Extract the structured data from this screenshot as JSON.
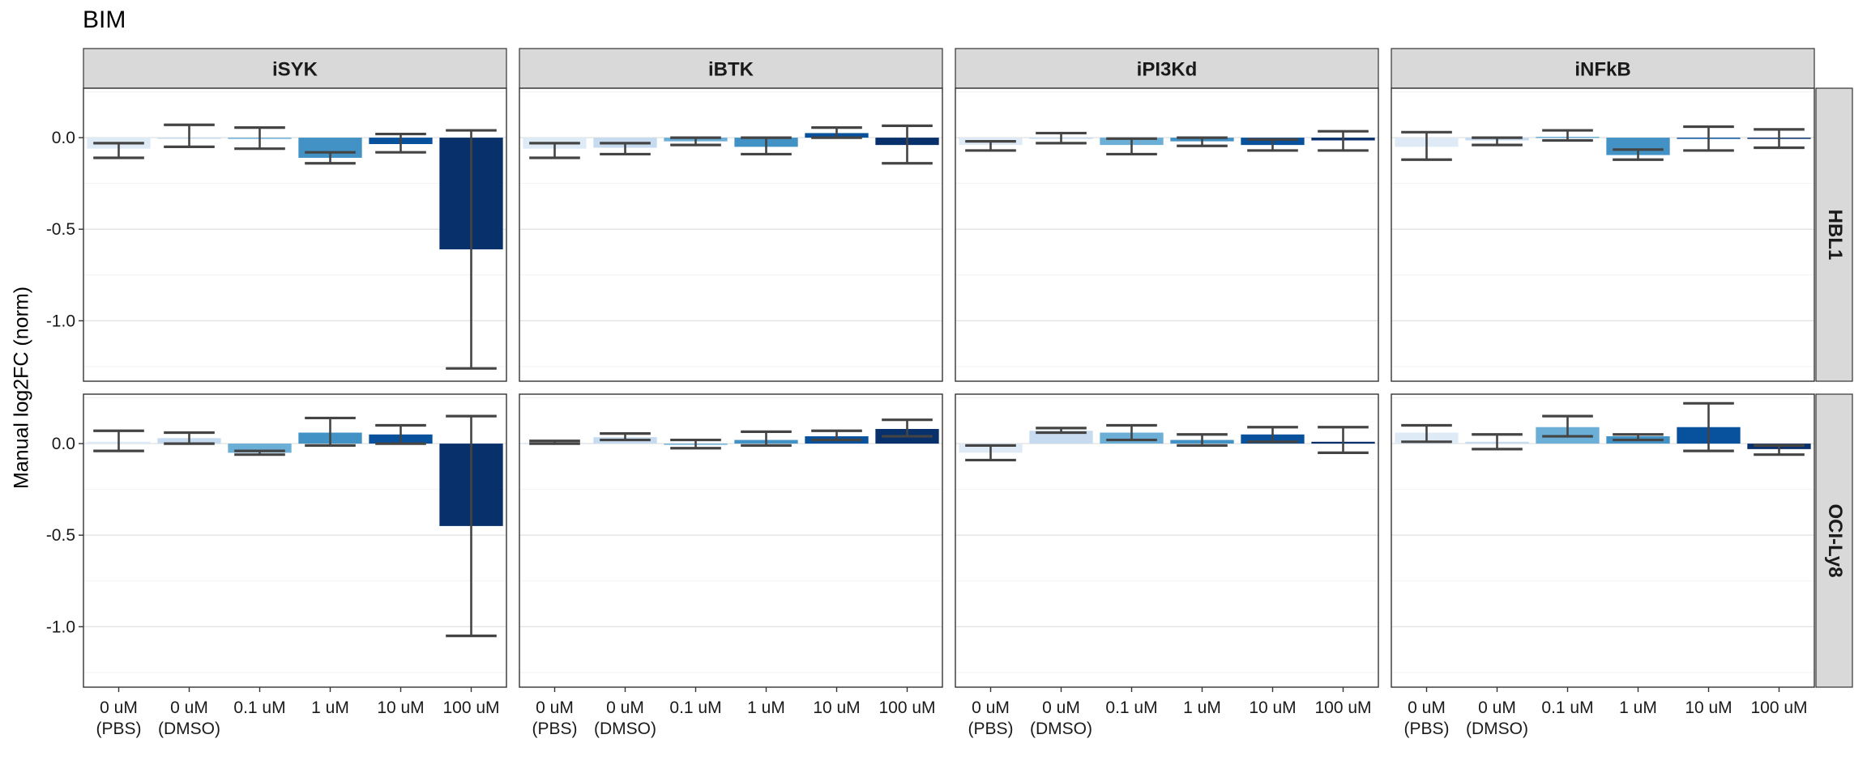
{
  "chart_data": {
    "type": "bar",
    "title": "BIM",
    "ylabel": "Manual log2FC (norm)",
    "xlabel": "",
    "ylim": [
      -1.33,
      0.27
    ],
    "yticks": [
      0.0,
      -0.5,
      -1.0
    ],
    "ytick_labels": [
      "0.0",
      "-0.5",
      "-1.0"
    ],
    "grid": true,
    "legend": "none",
    "categories": [
      "0 uM\n(PBS)",
      "0 uM\n(DMSO)",
      "0.1 uM",
      "1 uM",
      "10 uM",
      "100 uM"
    ],
    "bar_colors": [
      "#deebf7",
      "#c6dbef",
      "#6baed6",
      "#4292c6",
      "#08519c",
      "#08306b"
    ],
    "facet_cols": [
      "iSYK",
      "iBTK",
      "iPI3Kd",
      "iNFkB"
    ],
    "facet_rows": [
      "HBL1",
      "OCI-Ly8"
    ],
    "panels": [
      {
        "row": "HBL1",
        "col": "iSYK",
        "values": [
          -0.06,
          0.0,
          -0.005,
          -0.11,
          -0.035,
          -0.61
        ],
        "err_low": [
          -0.11,
          -0.05,
          -0.06,
          -0.14,
          -0.08,
          -1.26
        ],
        "err_high": [
          -0.03,
          0.07,
          0.055,
          -0.08,
          0.02,
          0.04
        ]
      },
      {
        "row": "HBL1",
        "col": "iBTK",
        "values": [
          -0.06,
          -0.055,
          -0.02,
          -0.05,
          0.025,
          -0.04
        ],
        "err_low": [
          -0.11,
          -0.09,
          -0.04,
          -0.09,
          0.0,
          -0.14
        ],
        "err_high": [
          -0.03,
          -0.03,
          0.0,
          0.0,
          0.055,
          0.065
        ]
      },
      {
        "row": "HBL1",
        "col": "iPI3Kd",
        "values": [
          -0.04,
          0.0,
          -0.04,
          -0.02,
          -0.04,
          -0.015
        ],
        "err_low": [
          -0.07,
          -0.03,
          -0.09,
          -0.045,
          -0.07,
          -0.07
        ],
        "err_high": [
          -0.02,
          0.025,
          -0.005,
          0.0,
          -0.01,
          0.035
        ]
      },
      {
        "row": "HBL1",
        "col": "iNFkB",
        "values": [
          -0.05,
          -0.015,
          0.005,
          -0.095,
          -0.005,
          -0.005
        ],
        "err_low": [
          -0.12,
          -0.04,
          -0.015,
          -0.12,
          -0.07,
          -0.055
        ],
        "err_high": [
          0.03,
          0.0,
          0.04,
          -0.065,
          0.06,
          0.045
        ]
      },
      {
        "row": "OCI-Ly8",
        "col": "iSYK",
        "values": [
          0.01,
          0.03,
          -0.05,
          0.06,
          0.05,
          -0.45
        ],
        "err_low": [
          -0.04,
          0.0,
          -0.06,
          -0.01,
          0.0,
          -1.05
        ],
        "err_high": [
          0.07,
          0.06,
          -0.04,
          0.14,
          0.1,
          0.15
        ]
      },
      {
        "row": "OCI-Ly8",
        "col": "iBTK",
        "values": [
          0.005,
          0.035,
          -0.005,
          0.02,
          0.04,
          0.08
        ],
        "err_low": [
          0.0,
          0.02,
          -0.025,
          -0.01,
          0.02,
          0.04
        ],
        "err_high": [
          0.015,
          0.055,
          0.02,
          0.065,
          0.07,
          0.13
        ]
      },
      {
        "row": "OCI-Ly8",
        "col": "iPI3Kd",
        "values": [
          -0.05,
          0.07,
          0.06,
          0.02,
          0.05,
          0.01
        ],
        "err_low": [
          -0.09,
          0.06,
          0.02,
          -0.01,
          0.01,
          -0.05
        ],
        "err_high": [
          -0.01,
          0.085,
          0.1,
          0.05,
          0.09,
          0.09
        ]
      },
      {
        "row": "OCI-Ly8",
        "col": "iNFkB",
        "values": [
          0.06,
          0.01,
          0.09,
          0.04,
          0.09,
          -0.03
        ],
        "err_low": [
          0.01,
          -0.03,
          0.04,
          0.02,
          -0.04,
          -0.06
        ],
        "err_high": [
          0.1,
          0.05,
          0.15,
          0.05,
          0.22,
          -0.01
        ]
      }
    ]
  }
}
